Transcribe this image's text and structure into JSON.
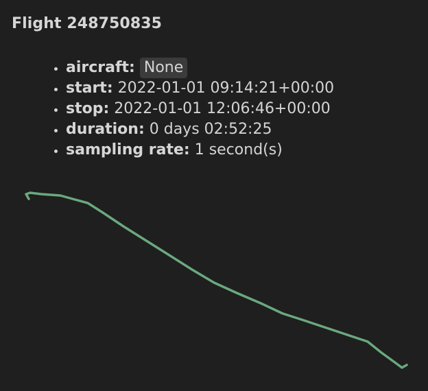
{
  "flight": {
    "title": "Flight 248750835",
    "properties": [
      {
        "key": "aircraft:",
        "value": "None",
        "style": "code"
      },
      {
        "key": "start:",
        "value": "2022-01-01 09:14:21+00:00"
      },
      {
        "key": "stop:",
        "value": "2022-01-01 12:06:46+00:00"
      },
      {
        "key": "duration:",
        "value": "0 days 02:52:25"
      },
      {
        "key": "sampling rate:",
        "value": "1 second(s)"
      }
    ]
  },
  "trajectory": {
    "color": "#6aa97f",
    "background": "#1f1f1f"
  }
}
